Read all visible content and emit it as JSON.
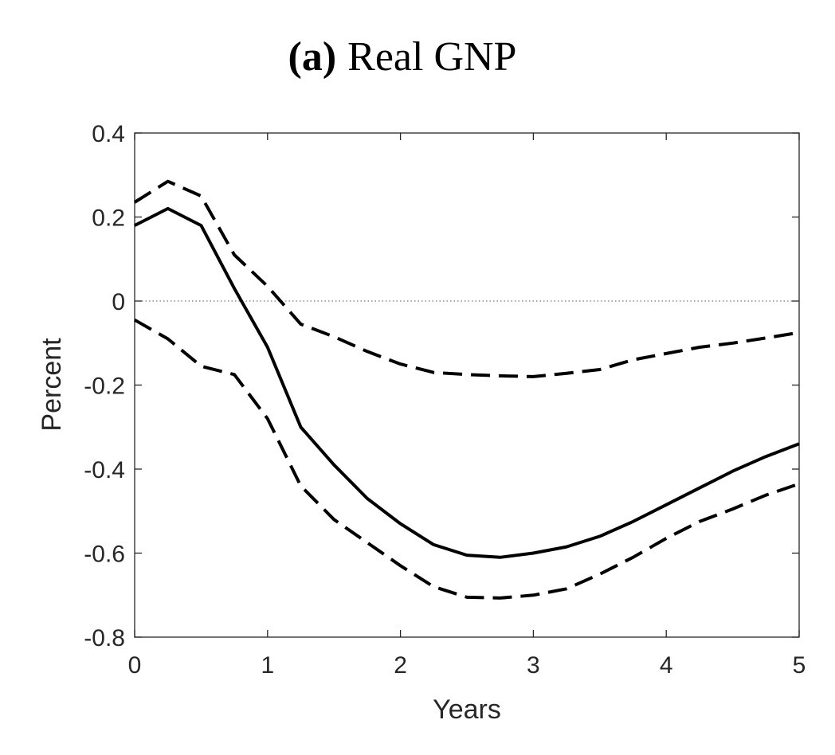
{
  "chart_data": {
    "type": "line",
    "title_prefix": "(a)",
    "title": "Real GNP",
    "xlabel": "Years",
    "ylabel": "Percent",
    "xlim": [
      0,
      5
    ],
    "ylim": [
      -0.8,
      0.4
    ],
    "xticks": [
      0,
      1,
      2,
      3,
      4,
      5
    ],
    "xtick_labels": [
      "0",
      "1",
      "2",
      "3",
      "4",
      "5"
    ],
    "yticks": [
      0.4,
      0.2,
      0,
      -0.2,
      -0.4,
      -0.6,
      -0.8
    ],
    "ytick_labels": [
      "0.4",
      "0.2",
      "0",
      "-0.2",
      "-0.4",
      "-0.6",
      "-0.8"
    ],
    "grid": false,
    "zero_line": true,
    "x": [
      0,
      0.25,
      0.5,
      0.75,
      1.0,
      1.25,
      1.5,
      1.75,
      2.0,
      2.25,
      2.5,
      2.75,
      3.0,
      3.25,
      3.5,
      3.75,
      4.0,
      4.25,
      4.5,
      4.75,
      5.0
    ],
    "series": [
      {
        "style": "solid",
        "color": "#000000",
        "values": [
          0.18,
          0.22,
          0.18,
          0.03,
          -0.11,
          -0.3,
          -0.39,
          -0.47,
          -0.53,
          -0.58,
          -0.605,
          -0.61,
          -0.6,
          -0.585,
          -0.56,
          -0.525,
          -0.485,
          -0.445,
          -0.405,
          -0.37,
          -0.34
        ]
      },
      {
        "style": "dashed",
        "color": "#000000",
        "values": [
          0.235,
          0.285,
          0.25,
          0.11,
          0.035,
          -0.055,
          -0.085,
          -0.12,
          -0.15,
          -0.17,
          -0.175,
          -0.178,
          -0.18,
          -0.172,
          -0.163,
          -0.14,
          -0.125,
          -0.11,
          -0.1,
          -0.088,
          -0.075
        ]
      },
      {
        "style": "dashed",
        "color": "#000000",
        "values": [
          -0.045,
          -0.09,
          -0.155,
          -0.175,
          -0.28,
          -0.44,
          -0.52,
          -0.575,
          -0.63,
          -0.68,
          -0.705,
          -0.707,
          -0.7,
          -0.685,
          -0.65,
          -0.61,
          -0.565,
          -0.525,
          -0.495,
          -0.462,
          -0.435
        ]
      }
    ]
  }
}
